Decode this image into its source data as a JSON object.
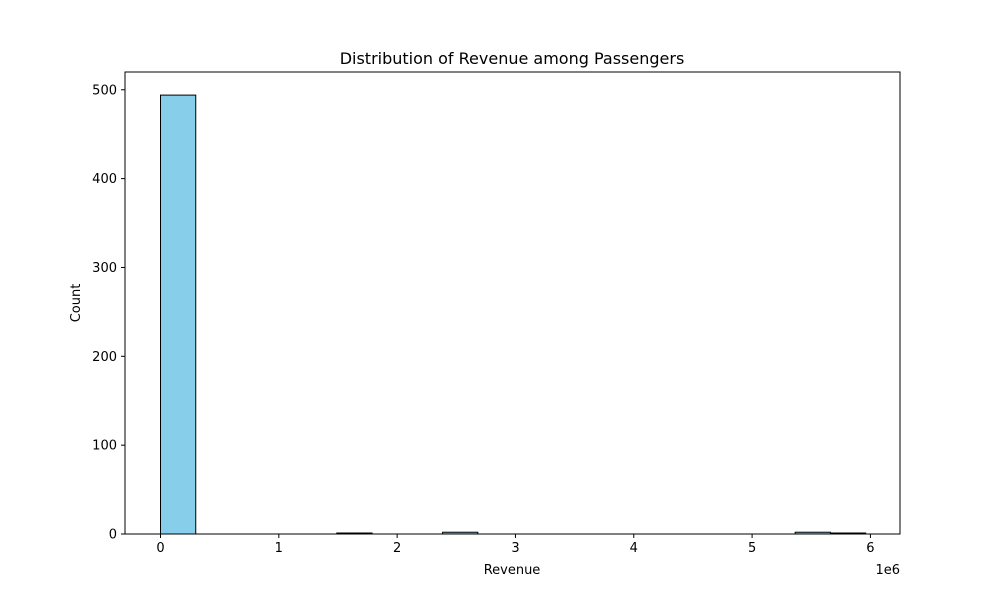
{
  "chart_data": {
    "type": "bar",
    "title": "Distribution of Revenue among Passengers",
    "xlabel": "Revenue",
    "ylabel": "Count",
    "x_offset_label": "1e6",
    "xlim": [
      -0.3,
      6.25
    ],
    "ylim": [
      0,
      520
    ],
    "x_ticks": [
      0,
      1,
      2,
      3,
      4,
      5,
      6
    ],
    "x_tick_labels": [
      "0",
      "1",
      "2",
      "3",
      "4",
      "5",
      "6"
    ],
    "y_ticks": [
      0,
      100,
      200,
      300,
      400,
      500
    ],
    "y_tick_labels": [
      "0",
      "100",
      "200",
      "300",
      "400",
      "500"
    ],
    "bin_edges": [
      0,
      0.298,
      0.596,
      0.894,
      1.192,
      1.49,
      1.788,
      2.086,
      2.384,
      2.682,
      2.98,
      3.278,
      3.576,
      3.874,
      4.172,
      4.47,
      4.768,
      5.066,
      5.364,
      5.662,
      5.96
    ],
    "values": [
      494,
      0,
      0,
      0,
      0,
      1,
      0,
      0,
      2,
      0,
      0,
      0,
      0,
      0,
      0,
      0,
      0,
      0,
      2,
      1
    ],
    "bar_color": "#87ceeb",
    "edge_color": "#000000",
    "grid": false
  }
}
